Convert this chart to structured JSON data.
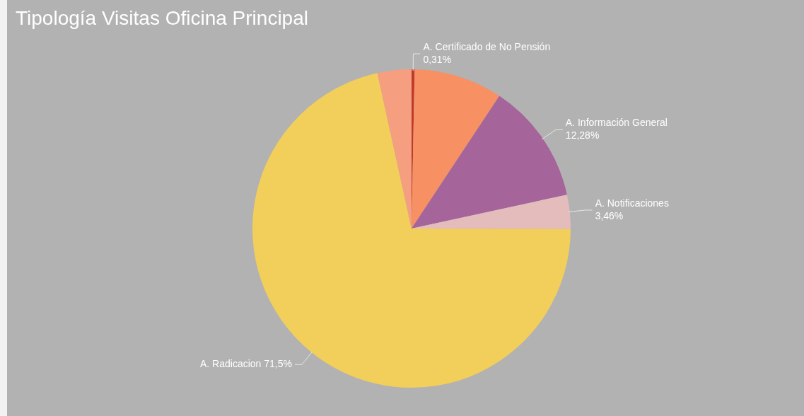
{
  "chart_data": {
    "type": "pie",
    "title": "Tipología Visitas Oficina Principal",
    "categories": [
      "A. Certificado de No Pensión",
      null,
      "A. Información General",
      "A. Notificaciones",
      "A. Radicacion",
      null
    ],
    "values": [
      0.31,
      9.0,
      12.28,
      3.46,
      71.5,
      3.45
    ],
    "value_labels": [
      "0,31%",
      null,
      "12,28%",
      "3,46%",
      "71,5%",
      null
    ],
    "colors": [
      "#c0392b",
      "#f79163",
      "#a5649a",
      "#e4bcbc",
      "#f2ce5a",
      "#f59e80"
    ],
    "legend": false
  }
}
